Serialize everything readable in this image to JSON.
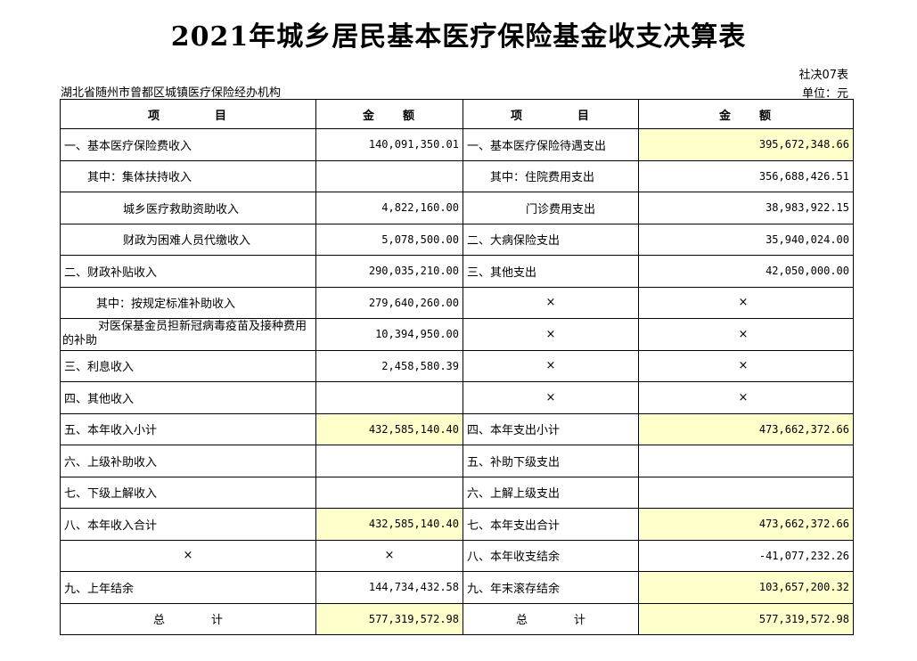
{
  "title": "2021年城乡居民基本医疗保险基金收支决算表",
  "form_code": "社决07表",
  "unit": "单位：元",
  "org": "湖北省随州市曾都区城镇医疗保险经办机构",
  "headers": {
    "item_left": "项　　　　目",
    "amount_left": "金　　额",
    "item_right": "项　　　　目",
    "amount_right": "金　　额"
  },
  "rows": [
    {
      "l_item": "一、基本医疗保险费收入",
      "l_amt": "140,091,350.01",
      "r_item": "一、基本医疗保险待遇支出",
      "r_amt": "395,672,348.66"
    },
    {
      "l_item": "其中：集体扶持收入",
      "l_amt": "",
      "r_item": "其中：住院费用支出",
      "r_amt": "356,688,426.51"
    },
    {
      "l_item": "城乡医疗救助资助收入",
      "l_amt": "4,822,160.00",
      "r_item": "门诊费用支出",
      "r_amt": "38,983,922.15"
    },
    {
      "l_item": "财政为困难人员代缴收入",
      "l_amt": "5,078,500.00",
      "r_item": "二、大病保险支出",
      "r_amt": "35,940,024.00"
    },
    {
      "l_item": "二、财政补贴收入",
      "l_amt": "290,035,210.00",
      "r_item": "三、其他支出",
      "r_amt": "42,050,000.00"
    },
    {
      "l_item": "其中：按规定标准补助收入",
      "l_amt": "279,640,260.00",
      "r_item": "×",
      "r_amt": "×"
    },
    {
      "l_item": "对医保基金员担新冠病毒疫苗及接种费用的补助",
      "l_amt": "10,394,950.00",
      "r_item": "×",
      "r_amt": "×"
    },
    {
      "l_item": "三、利息收入",
      "l_amt": "2,458,580.39",
      "r_item": "×",
      "r_amt": "×"
    },
    {
      "l_item": "四、其他收入",
      "l_amt": "",
      "r_item": "×",
      "r_amt": "×"
    },
    {
      "l_item": "五、本年收入小计",
      "l_amt": "432,585,140.40",
      "r_item": "四、本年支出小计",
      "r_amt": "473,662,372.66"
    },
    {
      "l_item": "六、上级补助收入",
      "l_amt": "",
      "r_item": "五、补助下级支出",
      "r_amt": ""
    },
    {
      "l_item": "七、下级上解收入",
      "l_amt": "",
      "r_item": "六、上解上级支出",
      "r_amt": ""
    },
    {
      "l_item": "八、本年收入合计",
      "l_amt": "432,585,140.40",
      "r_item": "七、本年支出合计",
      "r_amt": "473,662,372.66"
    },
    {
      "l_item": "×",
      "l_amt": "×",
      "r_item": "八、本年收支结余",
      "r_amt": "-41,077,232.26"
    },
    {
      "l_item": "九、上年结余",
      "l_amt": "144,734,432.58",
      "r_item": "九、年末滚存结余",
      "r_amt": "103,657,200.32"
    },
    {
      "l_item": "总　　　　计",
      "l_amt": "577,319,572.98",
      "r_item": "总　　　　计",
      "r_amt": "577,319,572.98"
    }
  ]
}
